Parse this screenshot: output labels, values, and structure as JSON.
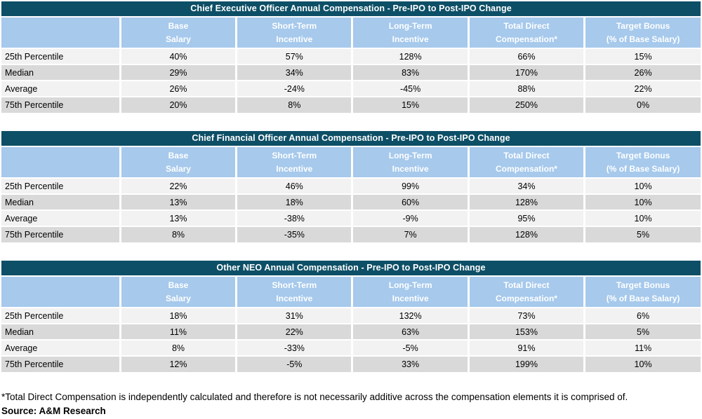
{
  "colors": {
    "title_bg": "#0D4F66",
    "header_bg": "#A6C9EC",
    "row_light": "#F2F2F2",
    "row_dark": "#D9D9D9",
    "header_text": "#FFFFFF"
  },
  "column_headers": [
    {
      "line1": "Base",
      "line2": "Salary"
    },
    {
      "line1": "Short-Term",
      "line2": "Incentive"
    },
    {
      "line1": "Long-Term",
      "line2": "Incentive"
    },
    {
      "line1": "Total Direct",
      "line2": "Compensation*"
    },
    {
      "line1": "Target Bonus",
      "line2": "(% of Base Salary)"
    }
  ],
  "tables": [
    {
      "title": "Chief Executive Officer Annual Compensation - Pre-IPO to Post-IPO Change",
      "rows": [
        {
          "label": "25th Percentile",
          "values": [
            "40%",
            "57%",
            "128%",
            "66%",
            "15%"
          ]
        },
        {
          "label": "Median",
          "values": [
            "29%",
            "34%",
            "83%",
            "170%",
            "26%"
          ]
        },
        {
          "label": "Average",
          "values": [
            "26%",
            "-24%",
            "-45%",
            "88%",
            "22%"
          ]
        },
        {
          "label": "75th Percentile",
          "values": [
            "20%",
            "8%",
            "15%",
            "250%",
            "0%"
          ]
        }
      ]
    },
    {
      "title": "Chief Financial Officer Annual Compensation - Pre-IPO to Post-IPO Change",
      "rows": [
        {
          "label": "25th Percentile",
          "values": [
            "22%",
            "46%",
            "99%",
            "34%",
            "10%"
          ]
        },
        {
          "label": "Median",
          "values": [
            "13%",
            "18%",
            "60%",
            "128%",
            "10%"
          ]
        },
        {
          "label": "Average",
          "values": [
            "13%",
            "-38%",
            "-9%",
            "95%",
            "10%"
          ]
        },
        {
          "label": "75th Percentile",
          "values": [
            "8%",
            "-35%",
            "7%",
            "128%",
            "5%"
          ]
        }
      ]
    },
    {
      "title": "Other NEO Annual Compensation - Pre-IPO to Post-IPO Change",
      "rows": [
        {
          "label": "25th Percentile",
          "values": [
            "18%",
            "31%",
            "132%",
            "73%",
            "6%"
          ]
        },
        {
          "label": "Median",
          "values": [
            "11%",
            "22%",
            "63%",
            "153%",
            "5%"
          ]
        },
        {
          "label": "Average",
          "values": [
            "8%",
            "-33%",
            "-5%",
            "91%",
            "11%"
          ]
        },
        {
          "label": "75th Percentile",
          "values": [
            "12%",
            "-5%",
            "33%",
            "199%",
            "10%"
          ]
        }
      ]
    }
  ],
  "footnote": "*Total Direct Compensation is independently calculated and therefore is not necessarily additive across the compensation elements it is comprised of.",
  "source": "Source: A&M Research"
}
